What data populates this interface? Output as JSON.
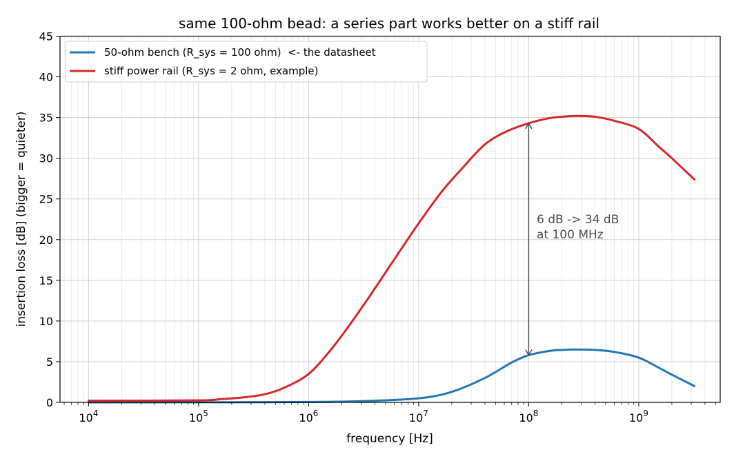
{
  "chart_data": {
    "type": "line",
    "title": "same 100-ohm bead: a series part works better on a stiff rail",
    "xlabel": "frequency [Hz]",
    "ylabel": "insertion loss [dB]  (bigger = quieter)",
    "xscale": "log",
    "xlim": [
      5500.0,
      5500000000.0
    ],
    "ylim": [
      0,
      45
    ],
    "xticks": [
      {
        "value": 10000,
        "label_base": "10",
        "label_exp": "4"
      },
      {
        "value": 100000,
        "label_base": "10",
        "label_exp": "5"
      },
      {
        "value": 1000000,
        "label_base": "10",
        "label_exp": "6"
      },
      {
        "value": 10000000,
        "label_base": "10",
        "label_exp": "7"
      },
      {
        "value": 100000000,
        "label_base": "10",
        "label_exp": "8"
      },
      {
        "value": 1000000000,
        "label_base": "10",
        "label_exp": "9"
      }
    ],
    "yticks": [
      0,
      5,
      10,
      15,
      20,
      25,
      30,
      35,
      40,
      45
    ],
    "grid": true,
    "legend_position": "top-left",
    "series": [
      {
        "name": "50-ohm bench (R_sys = 100 ohm)  <- the datasheet",
        "color": "#1f77b4",
        "x": [
          10000.0,
          100000.0,
          300000.0,
          1000000.0,
          3000000.0,
          10000000.0,
          20000000.0,
          40000000.0,
          70000000.0,
          100000000.0,
          150000000.0,
          200000000.0,
          270000000.0,
          400000000.0,
          600000000.0,
          1000000000.0,
          1500000000.0,
          2000000000.0,
          3200000000.0
        ],
        "y": [
          0.0,
          0.01,
          0.02,
          0.05,
          0.15,
          0.5,
          1.3,
          3.0,
          4.9,
          5.8,
          6.3,
          6.45,
          6.5,
          6.45,
          6.2,
          5.5,
          4.3,
          3.4,
          2.0
        ]
      },
      {
        "name": "stiff power rail (R_sys = 2 ohm, example)",
        "color": "#d62728",
        "x": [
          10000.0,
          100000.0,
          160000.0,
          250000.0,
          400000.0,
          600000.0,
          1000000.0,
          1600000.0,
          2500000.0,
          4000000.0,
          6300000.0,
          10000000.0,
          16000000.0,
          25000000.0,
          40000000.0,
          63000000.0,
          100000000.0,
          150000000.0,
          200000000.0,
          270000000.0,
          400000000.0,
          600000000.0,
          1000000000.0,
          1500000000.0,
          2000000000.0,
          3200000000.0
        ],
        "y": [
          0.2,
          0.25,
          0.4,
          0.6,
          1.0,
          1.8,
          3.5,
          6.5,
          10.0,
          14.0,
          18.0,
          22.0,
          25.8,
          28.8,
          31.7,
          33.3,
          34.3,
          34.9,
          35.1,
          35.2,
          35.1,
          34.6,
          33.6,
          31.5,
          30.0,
          27.4
        ]
      }
    ],
    "annotation": {
      "text_line1": "6 dB -> 34 dB",
      "text_line2": "at 100 MHz",
      "arrow_x": 100000000.0,
      "arrow_y_from": 5.8,
      "arrow_y_to": 34.3,
      "color": "#4d4d4d"
    }
  }
}
